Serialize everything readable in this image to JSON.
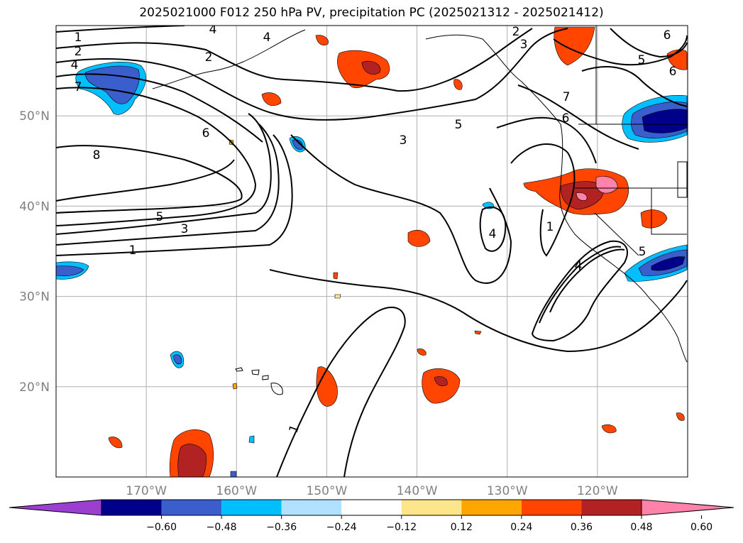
{
  "title": "2025021000 F012 250 hPa PV, precipitation PC (2025021312 - 2025021412)",
  "map": {
    "lon_range": [
      -180,
      -110
    ],
    "lat_range": [
      10,
      60
    ],
    "lon_ticks": [
      {
        "value": -170,
        "label": "170°W"
      },
      {
        "value": -160,
        "label": "160°W"
      },
      {
        "value": -150,
        "label": "150°W"
      },
      {
        "value": -140,
        "label": "140°W"
      },
      {
        "value": -130,
        "label": "130°W"
      },
      {
        "value": -120,
        "label": "120°W"
      }
    ],
    "lat_ticks": [
      {
        "value": 50,
        "label": "50°N"
      },
      {
        "value": 40,
        "label": "40°N"
      },
      {
        "value": 30,
        "label": "30°N"
      },
      {
        "value": 20,
        "label": "20°N"
      }
    ],
    "grid": true,
    "pv_contour_labels": [
      "1",
      "2",
      "4",
      "7",
      "2",
      "4",
      "4",
      "2",
      "3",
      "5",
      "6",
      "7",
      "6",
      "8",
      "6",
      "5",
      "3",
      "5",
      "3",
      "1",
      "4",
      "1",
      "4",
      "5",
      "6",
      "1"
    ]
  },
  "colorbar": {
    "ticks": [
      "−0.60",
      "−0.48",
      "−0.36",
      "−0.24",
      "−0.12",
      "0.12",
      "0.24",
      "0.36",
      "0.48",
      "0.60"
    ],
    "colors": [
      "#9a3fcf",
      "#00008b",
      "#3a5fcd",
      "#00bfff",
      "#b0e2ff",
      "#ffffff",
      "#fde68a",
      "#ffa500",
      "#ff4500",
      "#b22222",
      "#ff82ab"
    ]
  }
}
